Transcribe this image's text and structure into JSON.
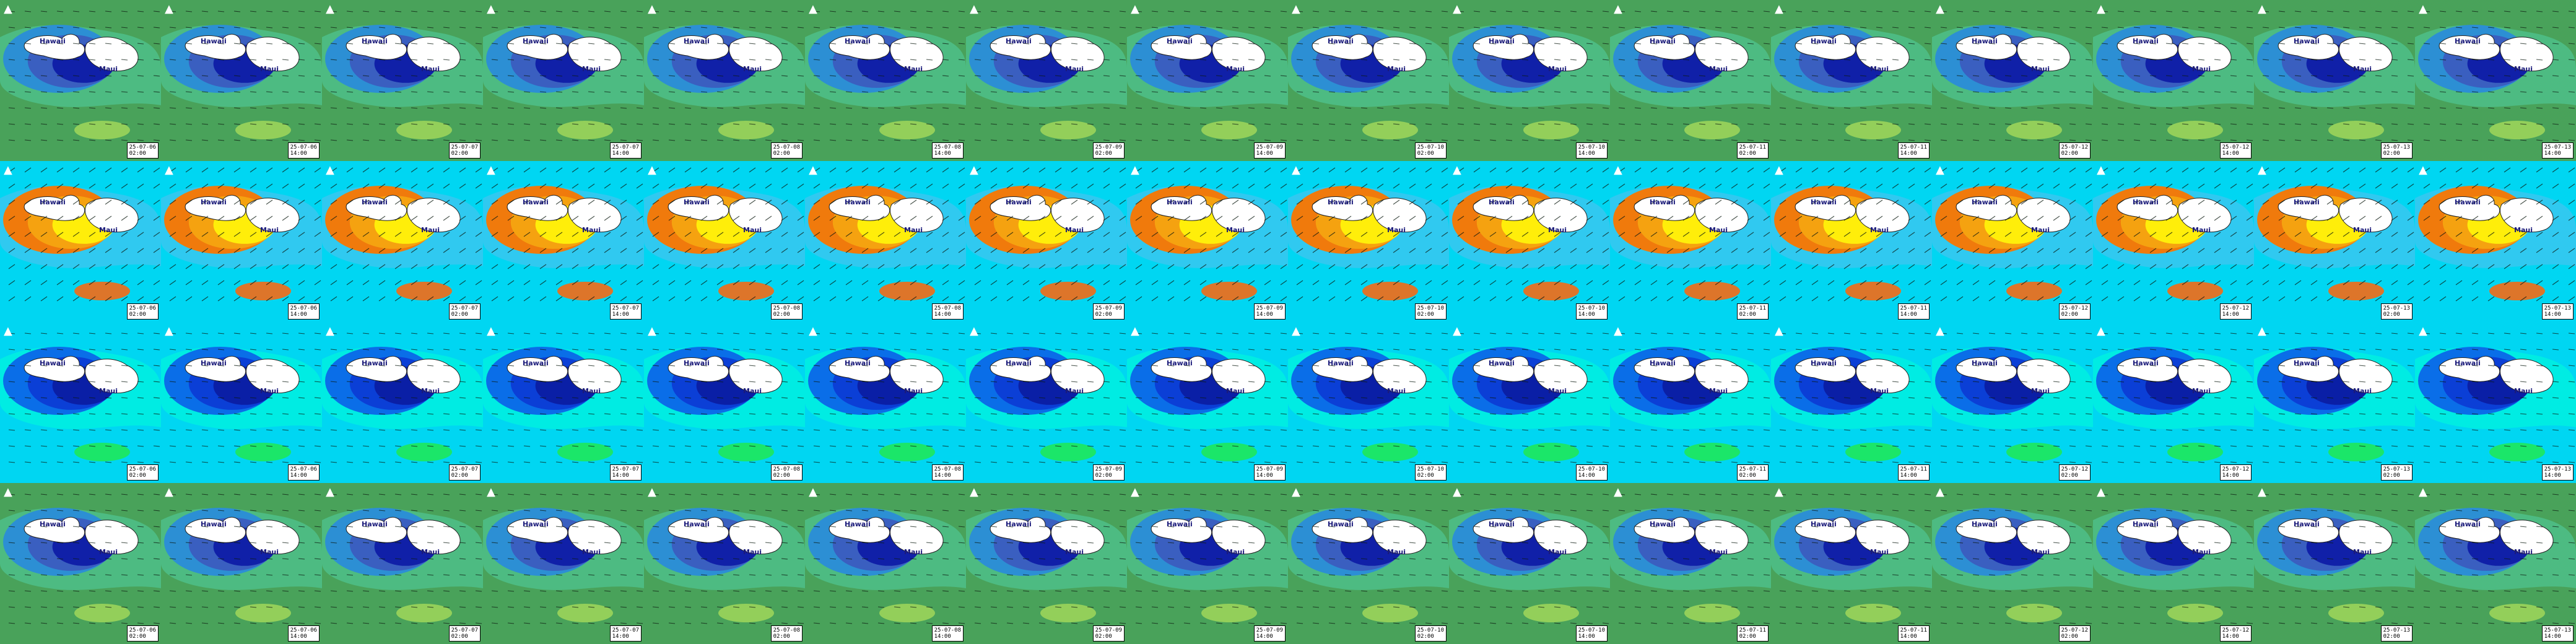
{
  "rows": [
    {
      "id": "wave-height",
      "bg": "#49a25a",
      "cloud": "#4dbf8a",
      "inner": [
        "#2c8fd4",
        "#3a5fc0",
        "#1020a8"
      ],
      "spot": "#9bd45a"
    },
    {
      "id": "wave-period",
      "bg": "#00d6f2",
      "cloud": "#38c7f0",
      "inner": [
        "#f07a0c",
        "#f5a210",
        "#ffee0a"
      ],
      "spot": "#f56a14"
    },
    {
      "id": "swell-height",
      "bg": "#00d6f2",
      "cloud": "#00f0e0",
      "inner": [
        "#0a6ee8",
        "#0b3fd6",
        "#0a1fa6"
      ],
      "spot": "#1ee85a"
    },
    {
      "id": "wind-swell",
      "bg": "#49a25a",
      "cloud": "#4dbf8a",
      "inner": [
        "#2c8fd4",
        "#3a5fc0",
        "#1020a8"
      ],
      "spot": "#9bd45a"
    }
  ],
  "timestamps": [
    {
      "date": "25-07-06",
      "time": "02:00"
    },
    {
      "date": "25-07-06",
      "time": "14:00"
    },
    {
      "date": "25-07-07",
      "time": "02:00"
    },
    {
      "date": "25-07-07",
      "time": "14:00"
    },
    {
      "date": "25-07-08",
      "time": "02:00"
    },
    {
      "date": "25-07-08",
      "time": "14:00"
    },
    {
      "date": "25-07-09",
      "time": "02:00"
    },
    {
      "date": "25-07-09",
      "time": "14:00"
    },
    {
      "date": "25-07-10",
      "time": "02:00"
    },
    {
      "date": "25-07-10",
      "time": "14:00"
    },
    {
      "date": "25-07-11",
      "time": "02:00"
    },
    {
      "date": "25-07-11",
      "time": "14:00"
    },
    {
      "date": "25-07-12",
      "time": "02:00"
    },
    {
      "date": "25-07-12",
      "time": "14:00"
    },
    {
      "date": "25-07-13",
      "time": "02:00"
    },
    {
      "date": "25-07-13",
      "time": "14:00"
    }
  ],
  "labels": {
    "hawaii": "Hawaii",
    "maui": "Maui"
  },
  "icons": {
    "north": "north-marker-icon",
    "arrow": "wind-arrow-icon"
  }
}
